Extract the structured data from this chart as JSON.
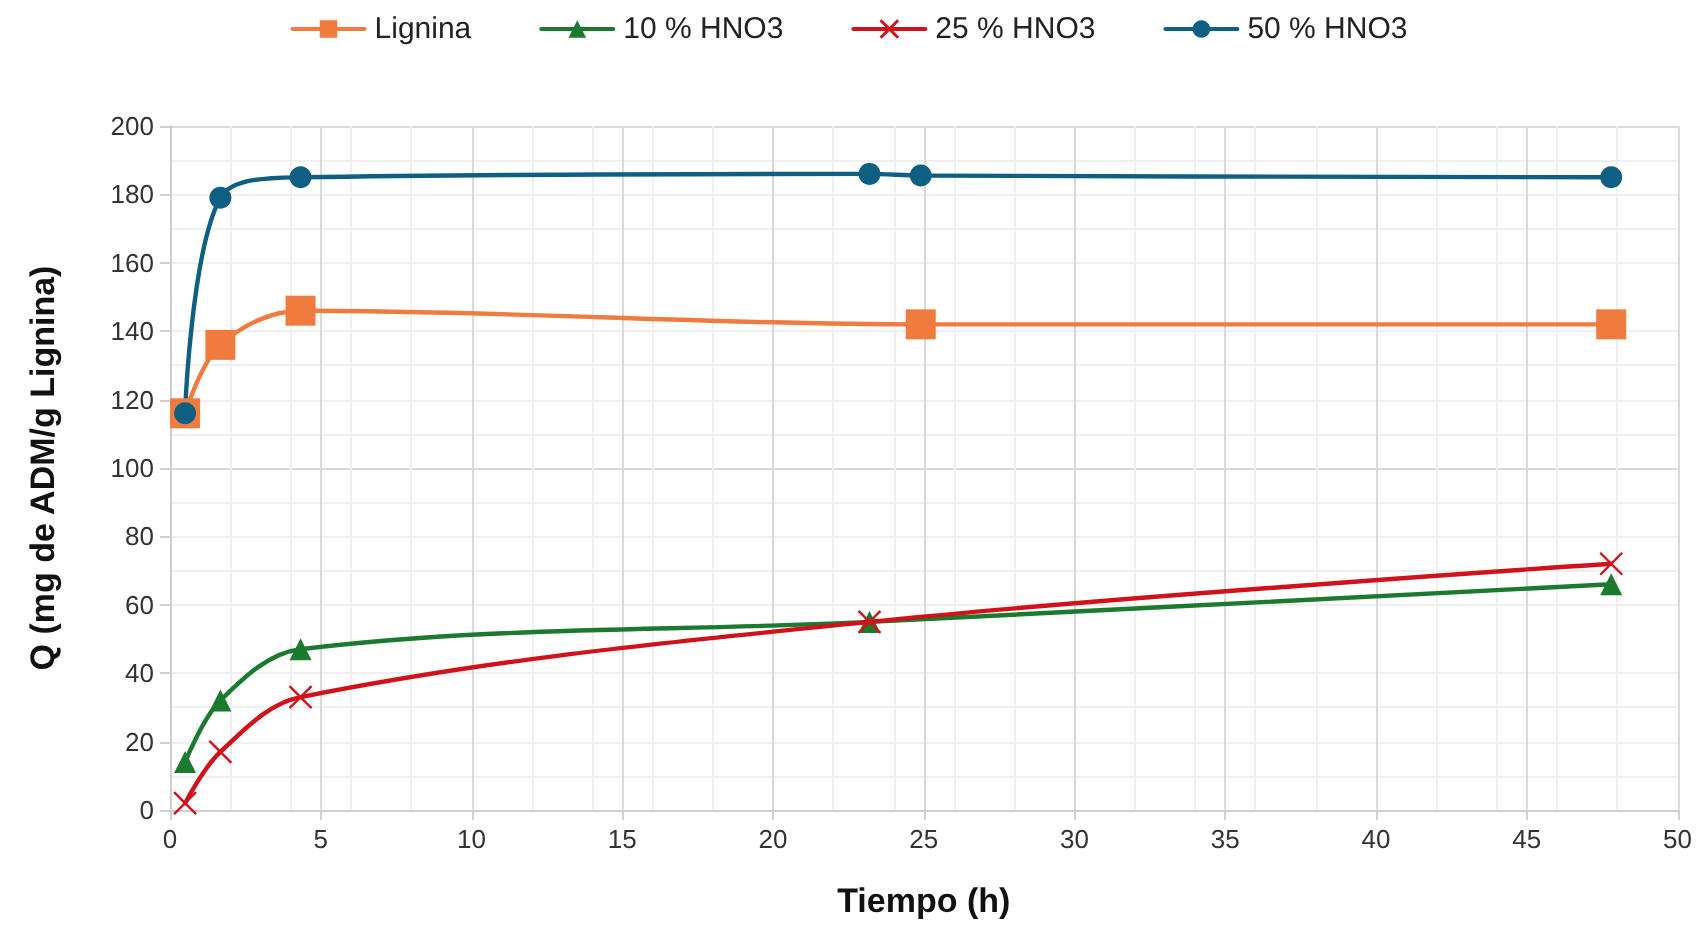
{
  "chart_data": {
    "type": "line",
    "xlabel": "Tiempo (h)",
    "ylabel": "Q (mg de ADM/g Lignina)",
    "xlim": [
      0,
      50
    ],
    "xticks": [
      0,
      5,
      10,
      15,
      20,
      25,
      30,
      35,
      40,
      45,
      50
    ],
    "ylim": [
      0,
      200
    ],
    "yticks": [
      0,
      20,
      40,
      60,
      80,
      100,
      120,
      140,
      160,
      180,
      200
    ],
    "grid": true,
    "legend": "top",
    "series": [
      {
        "name": "Lignina",
        "color": "#f07b3f",
        "marker": "square",
        "x": [
          0.5,
          1.67,
          4.33,
          24.9,
          47.8
        ],
        "values": [
          116,
          136,
          146,
          142,
          142
        ]
      },
      {
        "name": "10 % HNO3",
        "color": "#1a7a2e",
        "marker": "triangle",
        "x": [
          0.5,
          1.67,
          4.33,
          23.2,
          47.8
        ],
        "values": [
          14,
          32,
          47,
          55,
          66
        ]
      },
      {
        "name": "25 % HNO3",
        "color": "#d0121b",
        "marker": "cross",
        "x": [
          0.5,
          1.67,
          4.33,
          23.2,
          47.8
        ],
        "values": [
          2,
          17,
          33,
          55,
          72
        ]
      },
      {
        "name": "50 % HNO3",
        "color": "#0e5f82",
        "marker": "circle",
        "x": [
          0.5,
          1.67,
          4.33,
          23.2,
          24.9,
          47.8
        ],
        "values": [
          116,
          179,
          185,
          186,
          185.5,
          185
        ]
      }
    ]
  }
}
